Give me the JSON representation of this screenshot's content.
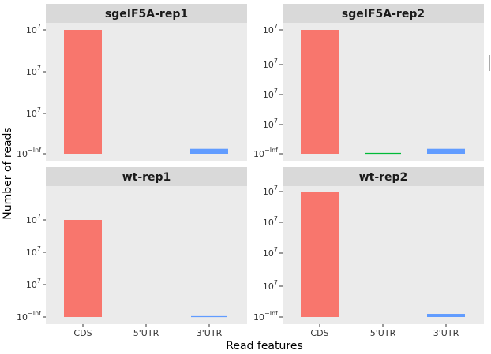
{
  "chart_data": {
    "type": "bar",
    "xlabel": "Read features",
    "ylabel": "Number of reads",
    "y_scale": "log",
    "categories": [
      "CDS",
      "5'UTR",
      "3'UTR"
    ],
    "category_colors": {
      "CDS": "#F8766D",
      "5'UTR": "#00BA38",
      "3'UTR": "#619CFF"
    },
    "panel_background": "#EBEBEB",
    "strip_background": "#D9D9D9",
    "grid": false,
    "legend": "none",
    "panels": [
      {
        "title": "sgeIF5A-rep1",
        "y_tick_labels": [
          {
            "base": "10",
            "exp": "7"
          },
          {
            "base": "10",
            "exp": "7"
          },
          {
            "base": "10",
            "exp": "7"
          },
          {
            "base": "10",
            "exp": "−Inf"
          }
        ],
        "relative_heights": {
          "CDS": 1.0,
          "5'UTR": 0,
          "3'UTR": 0.04
        }
      },
      {
        "title": "sgeIF5A-rep2",
        "y_tick_labels": [
          {
            "base": "10",
            "exp": "7"
          },
          {
            "base": "10",
            "exp": "7"
          },
          {
            "base": "10",
            "exp": "7"
          },
          {
            "base": "10",
            "exp": "7"
          },
          {
            "base": "10",
            "exp": "−Inf"
          }
        ],
        "relative_heights": {
          "CDS": 1.0,
          "5'UTR": 0.006,
          "3'UTR": 0.04
        }
      },
      {
        "title": "wt-rep1",
        "y_tick_labels": [
          {
            "base": "10",
            "exp": "7"
          },
          {
            "base": "10",
            "exp": "7"
          },
          {
            "base": "10",
            "exp": "7"
          },
          {
            "base": "10",
            "exp": "−Inf"
          }
        ],
        "relative_heights": {
          "CDS": 1.0,
          "5'UTR": 0,
          "3'UTR": 0.02
        }
      },
      {
        "title": "wt-rep2",
        "y_tick_labels": [
          {
            "base": "10",
            "exp": "7"
          },
          {
            "base": "10",
            "exp": "7"
          },
          {
            "base": "10",
            "exp": "7"
          },
          {
            "base": "10",
            "exp": "7"
          },
          {
            "base": "10",
            "exp": "−Inf"
          }
        ],
        "relative_heights": {
          "CDS": 1.0,
          "5'UTR": 0,
          "3'UTR": 0.025
        }
      }
    ]
  }
}
